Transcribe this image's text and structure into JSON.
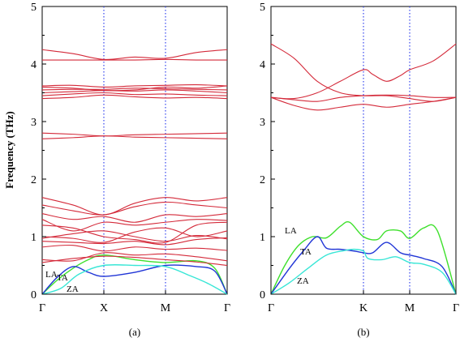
{
  "y_axis_label": "Frequency (THz)",
  "colors": {
    "optical": "#d42a3a",
    "LA": "#3ee02c",
    "TA": "#2035d6",
    "ZA": "#38e6d6",
    "guide": "#3344ee"
  },
  "chart_data": [
    {
      "type": "line",
      "panel_label": "(a)",
      "ylim": [
        0,
        5
      ],
      "yticks": [
        "0",
        "1",
        "2",
        "3",
        "4",
        "5"
      ],
      "xtick_labels": [
        "Γ",
        "X",
        "M",
        "Γ"
      ],
      "xtick_positions": [
        0,
        1,
        2,
        3
      ],
      "series": [
        {
          "name": "LA",
          "kind": "LA",
          "x": [
            0,
            0.25,
            0.5,
            0.75,
            1,
            1.5,
            2,
            2.5,
            2.8,
            3
          ],
          "y": [
            0,
            0.25,
            0.45,
            0.6,
            0.68,
            0.6,
            0.55,
            0.58,
            0.45,
            0
          ]
        },
        {
          "name": "TA",
          "kind": "TA",
          "x": [
            0,
            0.25,
            0.5,
            0.75,
            1,
            1.5,
            2,
            2.5,
            2.8,
            3
          ],
          "y": [
            0,
            0.3,
            0.48,
            0.38,
            0.31,
            0.38,
            0.5,
            0.48,
            0.4,
            0
          ]
        },
        {
          "name": "ZA",
          "kind": "ZA",
          "x": [
            0,
            0.3,
            0.6,
            1,
            1.5,
            2,
            2.4,
            2.7,
            3
          ],
          "y": [
            0,
            0.1,
            0.35,
            0.5,
            0.5,
            0.48,
            0.32,
            0.18,
            0
          ]
        },
        {
          "kind": "optical",
          "x": [
            0,
            0.5,
            1,
            1.5,
            2,
            2.5,
            3
          ],
          "y": [
            0.55,
            0.62,
            0.66,
            0.64,
            0.6,
            0.56,
            0.5
          ]
        },
        {
          "kind": "optical",
          "x": [
            0,
            0.5,
            1,
            1.5,
            2,
            2.5,
            3
          ],
          "y": [
            0.6,
            0.58,
            0.72,
            0.68,
            0.7,
            0.65,
            0.58
          ]
        },
        {
          "kind": "optical",
          "x": [
            0,
            0.5,
            1,
            1.5,
            2,
            2.5,
            3
          ],
          "y": [
            0.82,
            0.85,
            0.75,
            0.82,
            0.78,
            0.8,
            0.76
          ]
        },
        {
          "kind": "optical",
          "x": [
            0,
            0.5,
            1,
            1.5,
            2,
            2.5,
            3
          ],
          "y": [
            0.92,
            0.9,
            0.88,
            0.92,
            0.86,
            0.95,
            0.98
          ]
        },
        {
          "kind": "optical",
          "x": [
            0,
            0.5,
            1,
            1.5,
            2,
            2.5,
            3
          ],
          "y": [
            0.97,
            1.05,
            1.1,
            1.0,
            0.92,
            1.02,
            0.96
          ]
        },
        {
          "kind": "optical",
          "x": [
            0,
            0.5,
            1,
            1.5,
            2,
            2.5,
            3
          ],
          "y": [
            1.0,
            0.97,
            0.9,
            1.08,
            1.15,
            1.0,
            1.1
          ]
        },
        {
          "kind": "optical",
          "x": [
            0,
            0.5,
            1,
            1.5,
            2,
            2.5,
            3
          ],
          "y": [
            1.2,
            1.15,
            1.0,
            0.95,
            0.9,
            1.2,
            1.25
          ]
        },
        {
          "kind": "optical",
          "x": [
            0,
            0.5,
            1,
            1.5,
            2,
            2.5,
            3
          ],
          "y": [
            1.3,
            1.1,
            1.25,
            1.2,
            1.25,
            1.3,
            1.28
          ]
        },
        {
          "kind": "optical",
          "x": [
            0,
            0.5,
            1,
            1.5,
            2,
            2.5,
            3
          ],
          "y": [
            1.4,
            1.3,
            1.35,
            1.25,
            1.38,
            1.35,
            1.4
          ]
        },
        {
          "kind": "optical",
          "x": [
            0,
            0.5,
            1,
            1.5,
            2,
            2.5,
            3
          ],
          "y": [
            1.55,
            1.45,
            1.38,
            1.52,
            1.6,
            1.55,
            1.5
          ]
        },
        {
          "kind": "optical",
          "x": [
            0,
            0.5,
            1,
            1.5,
            2,
            2.5,
            3
          ],
          "y": [
            1.68,
            1.55,
            1.38,
            1.58,
            1.68,
            1.62,
            1.68
          ]
        },
        {
          "kind": "optical",
          "x": [
            0,
            0.5,
            1,
            1.5,
            2,
            2.5,
            3
          ],
          "y": [
            2.7,
            2.72,
            2.75,
            2.73,
            2.72,
            2.71,
            2.7
          ]
        },
        {
          "kind": "optical",
          "x": [
            0,
            0.5,
            1,
            1.5,
            2,
            2.5,
            3
          ],
          "y": [
            2.8,
            2.78,
            2.75,
            2.77,
            2.78,
            2.79,
            2.8
          ]
        },
        {
          "kind": "optical",
          "x": [
            0,
            0.5,
            1,
            1.5,
            2,
            2.5,
            3
          ],
          "y": [
            3.4,
            3.42,
            3.46,
            3.43,
            3.41,
            3.42,
            3.4
          ]
        },
        {
          "kind": "optical",
          "x": [
            0,
            0.5,
            1,
            1.5,
            2,
            2.5,
            3
          ],
          "y": [
            3.45,
            3.48,
            3.5,
            3.47,
            3.48,
            3.46,
            3.45
          ]
        },
        {
          "kind": "optical",
          "x": [
            0,
            0.5,
            1,
            1.5,
            2,
            2.5,
            3
          ],
          "y": [
            3.5,
            3.52,
            3.54,
            3.53,
            3.55,
            3.53,
            3.5
          ]
        },
        {
          "kind": "optical",
          "x": [
            0,
            0.5,
            1,
            1.5,
            2,
            2.5,
            3
          ],
          "y": [
            3.55,
            3.56,
            3.56,
            3.58,
            3.57,
            3.56,
            3.55
          ]
        },
        {
          "kind": "optical",
          "x": [
            0,
            0.5,
            1,
            1.5,
            2,
            2.5,
            3
          ],
          "y": [
            3.6,
            3.58,
            3.54,
            3.55,
            3.6,
            3.58,
            3.62
          ]
        },
        {
          "kind": "optical",
          "x": [
            0,
            0.5,
            1,
            1.5,
            2,
            2.5,
            3
          ],
          "y": [
            3.62,
            3.63,
            3.6,
            3.62,
            3.63,
            3.64,
            3.62
          ]
        },
        {
          "kind": "optical",
          "x": [
            0,
            0.5,
            1,
            1.5,
            2,
            2.5,
            3
          ],
          "y": [
            4.07,
            4.07,
            4.07,
            4.07,
            4.08,
            4.07,
            4.07
          ]
        },
        {
          "kind": "optical",
          "x": [
            0,
            0.5,
            1,
            1.5,
            2,
            2.5,
            3
          ],
          "y": [
            4.25,
            4.18,
            4.08,
            4.12,
            4.1,
            4.2,
            4.25
          ]
        }
      ]
    },
    {
      "type": "line",
      "panel_label": "(b)",
      "ylim": [
        0,
        5
      ],
      "yticks": [
        "0",
        "1",
        "2",
        "3",
        "4",
        "5"
      ],
      "xtick_labels": [
        "Γ",
        "K",
        "M",
        "Γ"
      ],
      "xtick_positions": [
        0,
        1,
        1.5,
        2
      ],
      "series": [
        {
          "name": "LA",
          "kind": "LA",
          "x": [
            0,
            0.15,
            0.3,
            0.45,
            0.6,
            0.75,
            0.85,
            1,
            1.15,
            1.25,
            1.4,
            1.5,
            1.65,
            1.8,
            2
          ],
          "y": [
            0,
            0.5,
            0.85,
            1.0,
            0.98,
            1.18,
            1.25,
            1.0,
            0.95,
            1.1,
            1.1,
            0.97,
            1.15,
            1.1,
            0
          ]
        },
        {
          "name": "TA",
          "kind": "TA",
          "x": [
            0,
            0.2,
            0.35,
            0.5,
            0.6,
            0.75,
            0.9,
            1,
            1.1,
            1.25,
            1.4,
            1.5,
            1.65,
            1.85,
            2
          ],
          "y": [
            0,
            0.45,
            0.75,
            1.0,
            0.8,
            0.78,
            0.75,
            0.72,
            0.72,
            0.9,
            0.72,
            0.68,
            0.62,
            0.48,
            0
          ]
        },
        {
          "name": "ZA",
          "kind": "ZA",
          "x": [
            0,
            0.2,
            0.4,
            0.6,
            0.8,
            0.9,
            1,
            1.05,
            1.2,
            1.35,
            1.5,
            1.65,
            1.85,
            2
          ],
          "y": [
            0,
            0.2,
            0.45,
            0.68,
            0.76,
            0.78,
            0.75,
            0.62,
            0.6,
            0.65,
            0.55,
            0.52,
            0.38,
            0
          ]
        },
        {
          "kind": "optical",
          "x": [
            0,
            0.25,
            0.5,
            0.75,
            1,
            1.25,
            1.5,
            1.75,
            2
          ],
          "y": [
            3.42,
            3.28,
            3.2,
            3.25,
            3.3,
            3.25,
            3.3,
            3.35,
            3.42
          ]
        },
        {
          "kind": "optical",
          "x": [
            0,
            0.25,
            0.5,
            0.75,
            1,
            1.25,
            1.5,
            1.75,
            2
          ],
          "y": [
            3.42,
            3.38,
            3.35,
            3.42,
            3.45,
            3.46,
            3.45,
            3.42,
            3.42
          ]
        },
        {
          "kind": "optical",
          "x": [
            0,
            0.25,
            0.5,
            0.75,
            1,
            1.25,
            1.5,
            1.75,
            2
          ],
          "y": [
            4.35,
            4.1,
            3.7,
            3.5,
            3.45,
            3.45,
            3.4,
            3.35,
            3.42
          ]
        },
        {
          "kind": "optical",
          "x": [
            0,
            0.25,
            0.5,
            0.75,
            1,
            1.1,
            1.25,
            1.4,
            1.5,
            1.75,
            2
          ],
          "y": [
            3.42,
            3.4,
            3.5,
            3.7,
            3.9,
            3.82,
            3.7,
            3.8,
            3.9,
            4.05,
            4.35
          ]
        }
      ]
    }
  ]
}
